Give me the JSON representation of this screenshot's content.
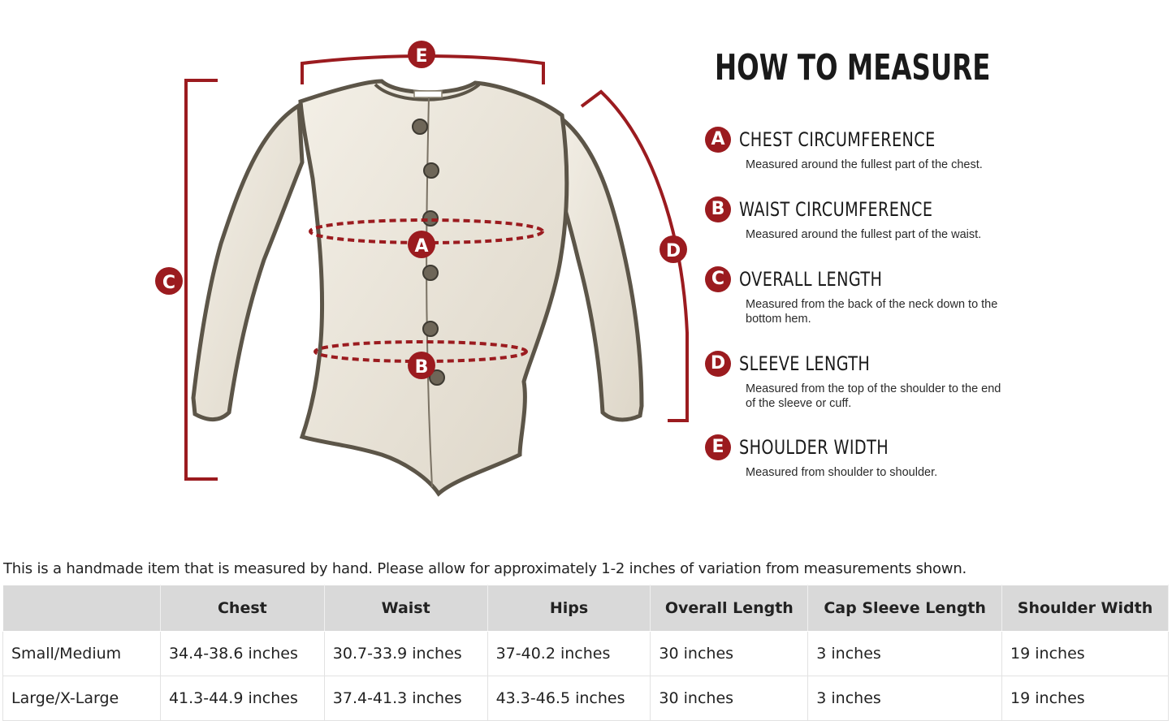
{
  "guide": {
    "title": "HOW TO MEASURE",
    "items": [
      {
        "letter": "A",
        "heading": "CHEST CIRCUMFERENCE",
        "description": "Measured around the fullest part of the chest."
      },
      {
        "letter": "B",
        "heading": "WAIST CIRCUMFERENCE",
        "description": "Measured around the fullest part of the waist."
      },
      {
        "letter": "C",
        "heading": "OVERALL LENGTH",
        "description": "Measured from the back of the neck down to the bottom hem."
      },
      {
        "letter": "D",
        "heading": "SLEEVE LENGTH",
        "description": "Measured from the top of the shoulder to the end of the sleeve or cuff."
      },
      {
        "letter": "E",
        "heading": "SHOULDER WIDTH",
        "description": "Measured from shoulder to shoulder."
      }
    ]
  },
  "diagram": {
    "labels": {
      "a": "A",
      "b": "B",
      "c": "C",
      "d": "D",
      "e": "E"
    },
    "colors": {
      "accent": "#9b1b1f",
      "garment": "#ece7dc",
      "garment_shadow": "#6b6356"
    }
  },
  "note": "This is a handmade item that is measured by hand. Please allow for approximately 1-2 inches of variation from measurements shown.",
  "table": {
    "headers": [
      "",
      "Chest",
      "Waist",
      "Hips",
      "Overall Length",
      "Cap Sleeve Length",
      "Shoulder Width"
    ],
    "rows": [
      [
        "Small/Medium",
        "34.4-38.6 inches",
        "30.7-33.9 inches",
        "37-40.2 inches",
        "30 inches",
        "3 inches",
        "19 inches"
      ],
      [
        "Large/X-Large",
        "41.3-44.9 inches",
        "37.4-41.3 inches",
        "43.3-46.5 inches",
        "30 inches",
        "3 inches",
        "19 inches"
      ]
    ]
  }
}
